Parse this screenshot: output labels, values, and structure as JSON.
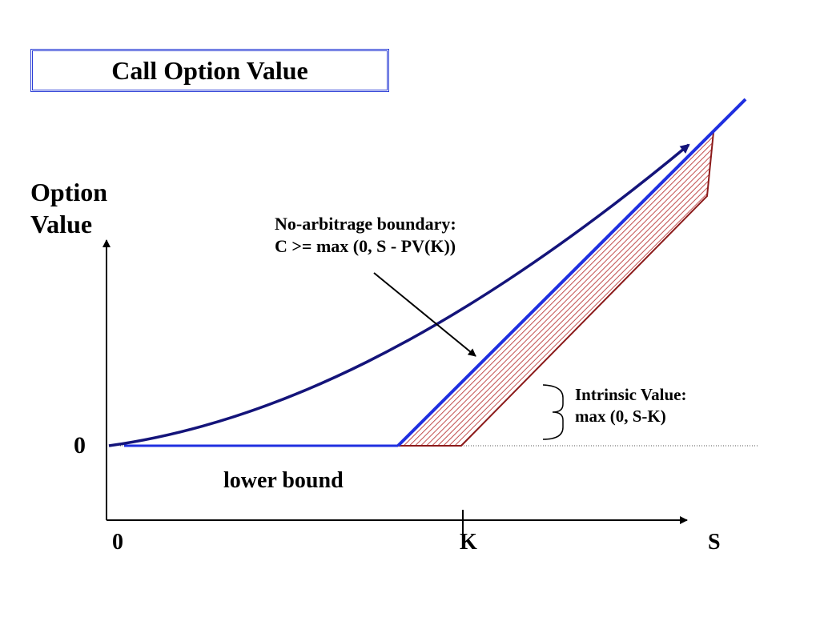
{
  "title": "Call Option Value",
  "y_axis": {
    "label_line1": "Option",
    "label_line2": "Value",
    "zero": "0"
  },
  "x_axis": {
    "zero": "0",
    "strike": "K",
    "label": "S"
  },
  "annotations": {
    "no_arbitrage_line1": "No-arbitrage boundary:",
    "no_arbitrage_line2": "C >= max (0, S - PV(K))",
    "intrinsic_line1": "Intrinsic Value:",
    "intrinsic_line2": "max (0, S-K)",
    "lower_bound": "lower bound"
  },
  "colors": {
    "title_border": "#2c3fd6",
    "option_curve": "#14147a",
    "no_arbitrage_line": "#1f2fe0",
    "intrinsic_line": "#8b1a1a",
    "hatch": "#b22222",
    "axes": "#000000"
  }
}
